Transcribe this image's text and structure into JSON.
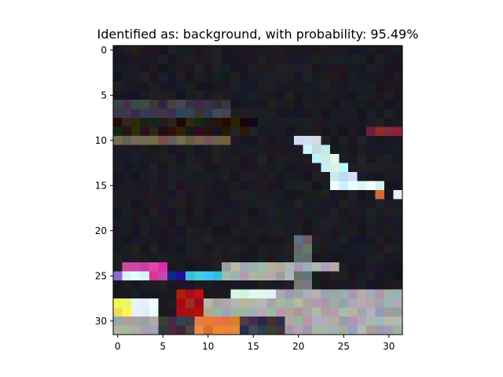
{
  "chart_data": {
    "type": "heatmap",
    "title": "Identified as: background, with probability: 95.49%",
    "xlabel": "",
    "ylabel": "",
    "xlim": [
      -0.5,
      31.5
    ],
    "ylim": [
      31.5,
      -0.5
    ],
    "x_ticks": [
      0,
      5,
      10,
      15,
      20,
      25,
      30
    ],
    "y_ticks": [
      0,
      5,
      10,
      15,
      20,
      25,
      30
    ],
    "grid": false,
    "image_size": [
      32,
      32
    ],
    "colors": {
      "background": "#1b1a22",
      "dark_band": "#221914",
      "gray_band": "#3a3a44",
      "tan_stripe": "#6e5d48",
      "highlight_blue": "#cfeaf2",
      "highlight_light": "#dff5ff",
      "magenta": "#d23ca8",
      "violet": "#9b5cd6",
      "blue": "#1d1d8c",
      "cyan": "#36c6e6",
      "yellow": "#f2e75a",
      "red": "#b01a14",
      "orange": "#e07a3a",
      "light_gray": "#a8a8ad",
      "maroon": "#7a2a36",
      "pole": "#6a6a74"
    }
  }
}
